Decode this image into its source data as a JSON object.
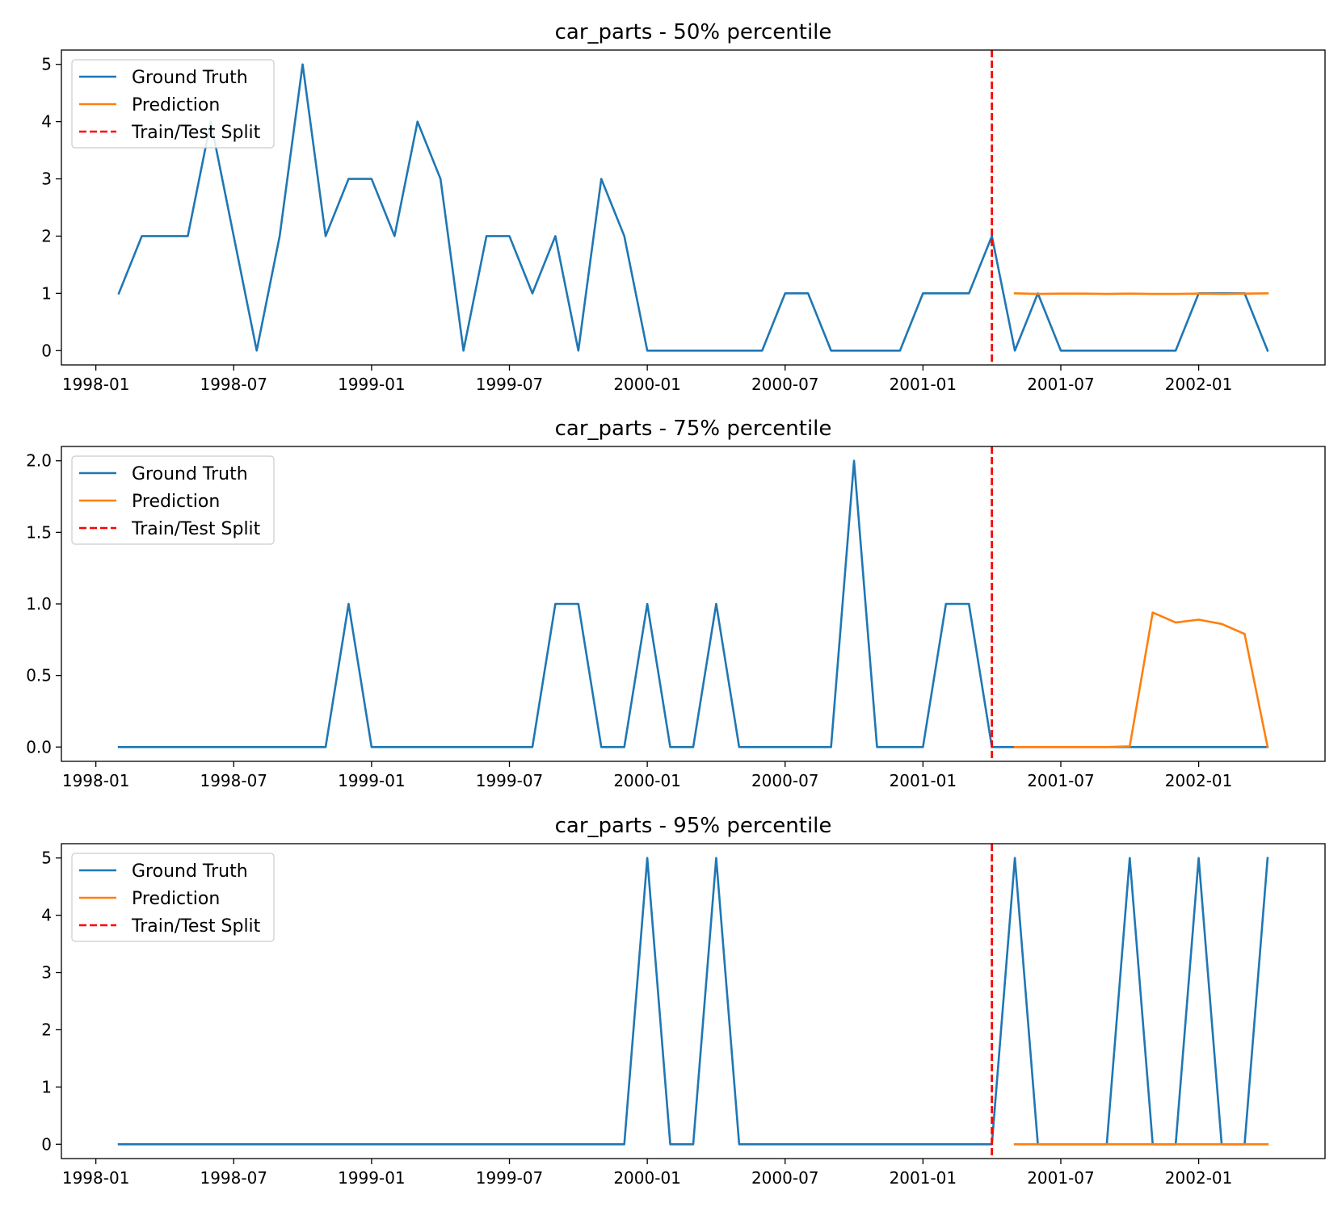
{
  "colors": {
    "ground_truth": "#1f77b4",
    "prediction": "#ff7f0e",
    "split": "#ff0000"
  },
  "chart_data": [
    {
      "type": "line",
      "title": "car_parts - 50% percentile",
      "xlabel": "",
      "ylabel": "",
      "x_start": "1998-02",
      "x_end": "2002-04",
      "x_ticks": [
        "1998-01",
        "1998-07",
        "1999-01",
        "1999-07",
        "2000-01",
        "2000-07",
        "2001-01",
        "2001-07",
        "2002-01"
      ],
      "ylim": [
        -0.25,
        5.25
      ],
      "y_ticks": [
        0,
        1,
        2,
        3,
        4,
        5
      ],
      "y_tick_labels": [
        "0",
        "1",
        "2",
        "3",
        "4",
        "5"
      ],
      "split": "2001-04",
      "legend": {
        "position": "top-left",
        "entries": [
          "Ground Truth",
          "Prediction",
          "Train/Test Split"
        ]
      },
      "series": [
        {
          "name": "Ground Truth",
          "start": "1998-02",
          "values": [
            1,
            2,
            2,
            2,
            4,
            2,
            0,
            2,
            5,
            2,
            3,
            3,
            2,
            4,
            3,
            0,
            2,
            2,
            1,
            2,
            0,
            3,
            2,
            0,
            0,
            0,
            0,
            0,
            0,
            1,
            1,
            0,
            0,
            0,
            0,
            1,
            1,
            1,
            2,
            0,
            1,
            0,
            0,
            0,
            0,
            0,
            0,
            1,
            1,
            1,
            0
          ]
        },
        {
          "name": "Prediction",
          "start": "2001-05",
          "values": [
            1.0,
            0.99,
            0.995,
            0.995,
            0.99,
            0.995,
            0.99,
            0.99,
            0.995,
            0.99,
            0.995,
            1.0
          ]
        }
      ]
    },
    {
      "type": "line",
      "title": "car_parts - 75% percentile",
      "xlabel": "",
      "ylabel": "",
      "x_start": "1998-02",
      "x_end": "2002-04",
      "x_ticks": [
        "1998-01",
        "1998-07",
        "1999-01",
        "1999-07",
        "2000-01",
        "2000-07",
        "2001-01",
        "2001-07",
        "2002-01"
      ],
      "ylim": [
        -0.1,
        2.1
      ],
      "y_ticks": [
        0,
        0.5,
        1,
        1.5,
        2
      ],
      "y_tick_labels": [
        "0.0",
        "0.5",
        "1.0",
        "1.5",
        "2.0"
      ],
      "split": "2001-04",
      "legend": {
        "position": "top-left",
        "entries": [
          "Ground Truth",
          "Prediction",
          "Train/Test Split"
        ]
      },
      "series": [
        {
          "name": "Ground Truth",
          "start": "1998-02",
          "values": [
            0,
            0,
            0,
            0,
            0,
            0,
            0,
            0,
            0,
            0,
            1,
            0,
            0,
            0,
            0,
            0,
            0,
            0,
            0,
            1,
            1,
            0,
            0,
            1,
            0,
            0,
            1,
            0,
            0,
            0,
            0,
            0,
            2,
            0,
            0,
            0,
            1,
            1,
            0,
            0,
            0,
            0,
            0,
            0,
            0,
            0,
            0,
            0,
            0,
            0,
            0
          ]
        },
        {
          "name": "Prediction",
          "start": "2001-05",
          "values": [
            0.0,
            0.0,
            0.0,
            0.0,
            0.0,
            0.005,
            0.94,
            0.87,
            0.89,
            0.86,
            0.79,
            0.0
          ]
        }
      ]
    },
    {
      "type": "line",
      "title": "car_parts - 95% percentile",
      "xlabel": "",
      "ylabel": "",
      "x_start": "1998-02",
      "x_end": "2002-04",
      "x_ticks": [
        "1998-01",
        "1998-07",
        "1999-01",
        "1999-07",
        "2000-01",
        "2000-07",
        "2001-01",
        "2001-07",
        "2002-01"
      ],
      "ylim": [
        -0.25,
        5.25
      ],
      "y_ticks": [
        0,
        1,
        2,
        3,
        4,
        5
      ],
      "y_tick_labels": [
        "0",
        "1",
        "2",
        "3",
        "4",
        "5"
      ],
      "split": "2001-04",
      "legend": {
        "position": "top-left",
        "entries": [
          "Ground Truth",
          "Prediction",
          "Train/Test Split"
        ]
      },
      "series": [
        {
          "name": "Ground Truth",
          "start": "1998-02",
          "values": [
            0,
            0,
            0,
            0,
            0,
            0,
            0,
            0,
            0,
            0,
            0,
            0,
            0,
            0,
            0,
            0,
            0,
            0,
            0,
            0,
            0,
            0,
            0,
            5,
            0,
            0,
            5,
            0,
            0,
            0,
            0,
            0,
            0,
            0,
            0,
            0,
            0,
            0,
            0,
            5,
            0,
            0,
            0,
            0,
            5,
            0,
            0,
            5,
            0,
            0,
            5
          ]
        },
        {
          "name": "Prediction",
          "start": "2001-05",
          "values": [
            0,
            0,
            0,
            0,
            0,
            0,
            0,
            0,
            0,
            0,
            0,
            0
          ]
        }
      ]
    }
  ]
}
